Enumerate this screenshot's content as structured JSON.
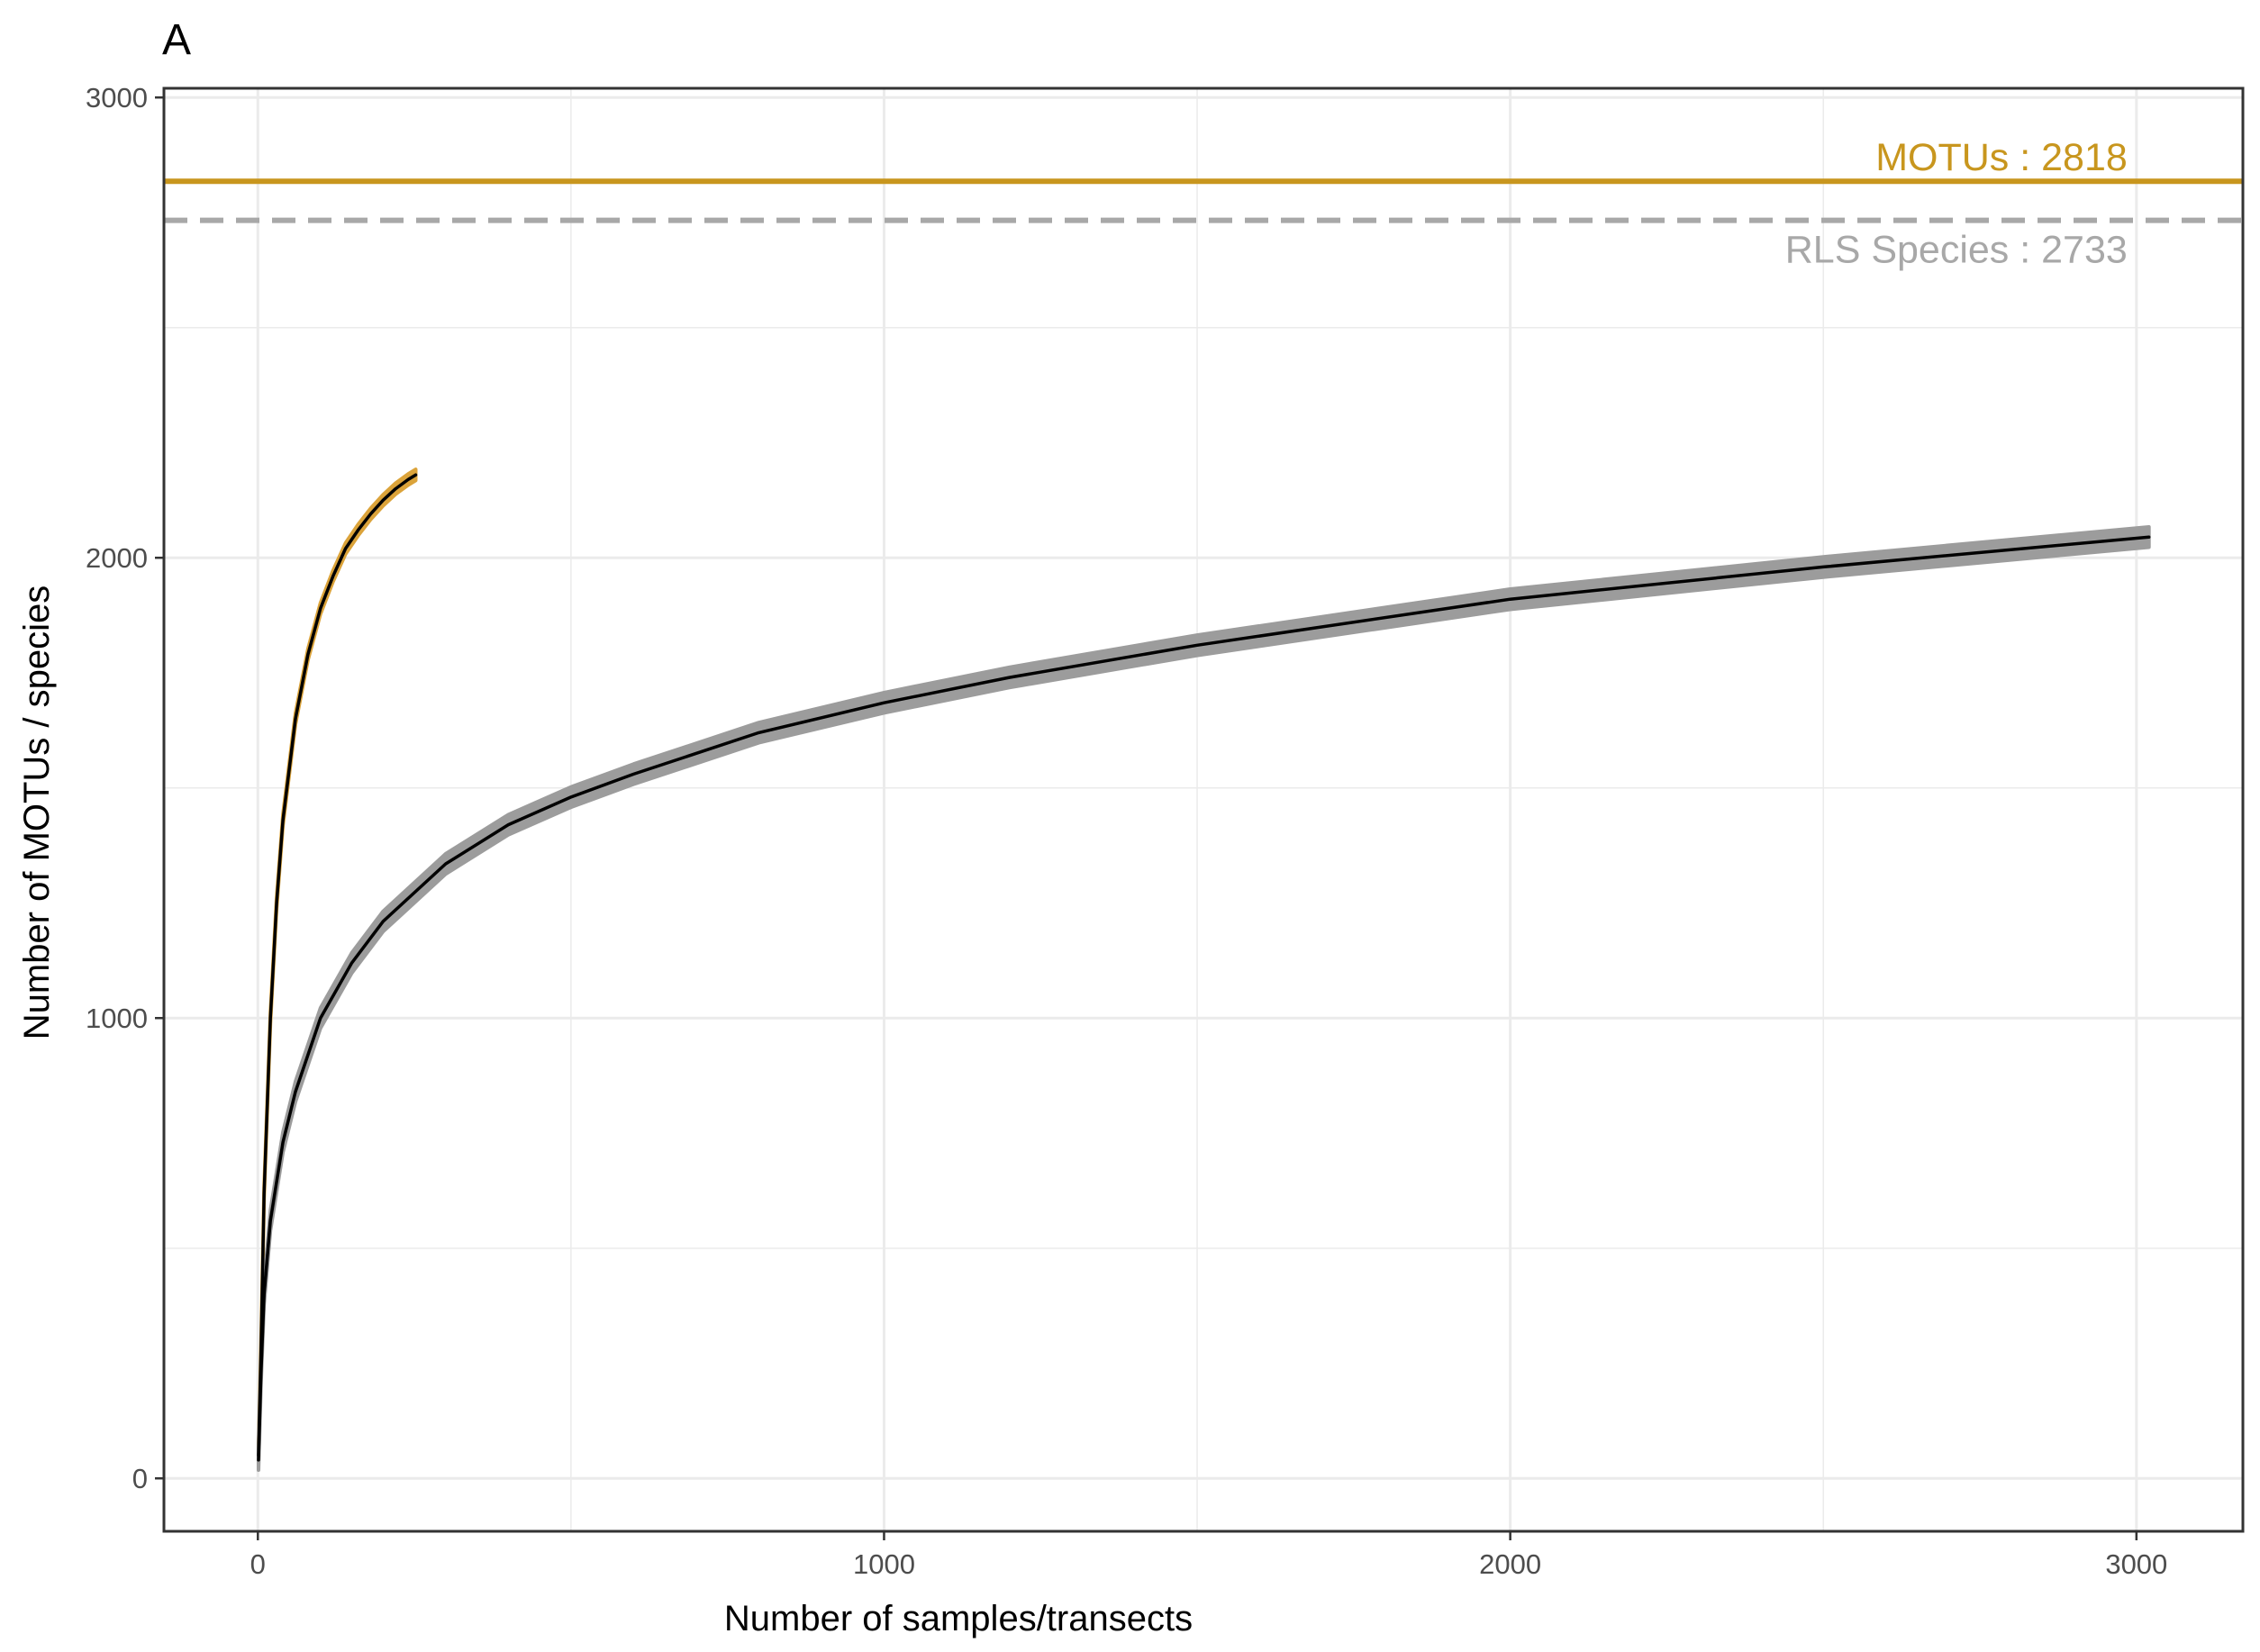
{
  "chart_data": {
    "type": "line",
    "panel_label": "A",
    "title": "",
    "xlabel": "Number of samples/transects",
    "ylabel": "Number of MOTUs / species",
    "xlim": [
      -150,
      3170
    ],
    "ylim": [
      -115,
      3020
    ],
    "x_ticks": [
      0,
      1000,
      2000,
      3000
    ],
    "y_ticks": [
      0,
      1000,
      2000,
      3000
    ],
    "x_minor": [
      500,
      1500,
      2500
    ],
    "y_minor": [
      500,
      1500,
      2500
    ],
    "grid": true,
    "colors": {
      "motu": "#c8961e",
      "rls": "#a8a8a8",
      "curve_line": "#000000",
      "motu_band": "#dba33a",
      "rls_band": "#9c9c9c",
      "grid": "#ebebeb",
      "border": "#333333"
    },
    "reference_lines": [
      {
        "value": 2818,
        "label": "MOTUs : 2818",
        "style": "solid",
        "color": "#c8961e"
      },
      {
        "value": 2733,
        "label": "RLS Species : 2733",
        "style": "dashed",
        "color": "#a8a8a8"
      }
    ],
    "series": [
      {
        "x": [
          1,
          5,
          10,
          20,
          30,
          40,
          60,
          80,
          100,
          120,
          140,
          160,
          180,
          200,
          220,
          240,
          252
        ],
        "y": [
          50,
          280,
          620,
          1000,
          1250,
          1430,
          1650,
          1790,
          1890,
          1960,
          2020,
          2060,
          2095,
          2125,
          2150,
          2170,
          2180
        ],
        "band": 12,
        "color": "#dba33a"
      },
      {
        "x": [
          1,
          5,
          10,
          20,
          40,
          60,
          100,
          150,
          200,
          300,
          400,
          500,
          600,
          800,
          1000,
          1200,
          1500,
          2000,
          2500,
          3020
        ],
        "y": [
          40,
          230,
          400,
          560,
          730,
          840,
          1000,
          1120,
          1210,
          1335,
          1420,
          1480,
          1530,
          1620,
          1685,
          1740,
          1810,
          1910,
          1980,
          2045
        ],
        "band": 22,
        "color": "#9c9c9c"
      }
    ]
  }
}
